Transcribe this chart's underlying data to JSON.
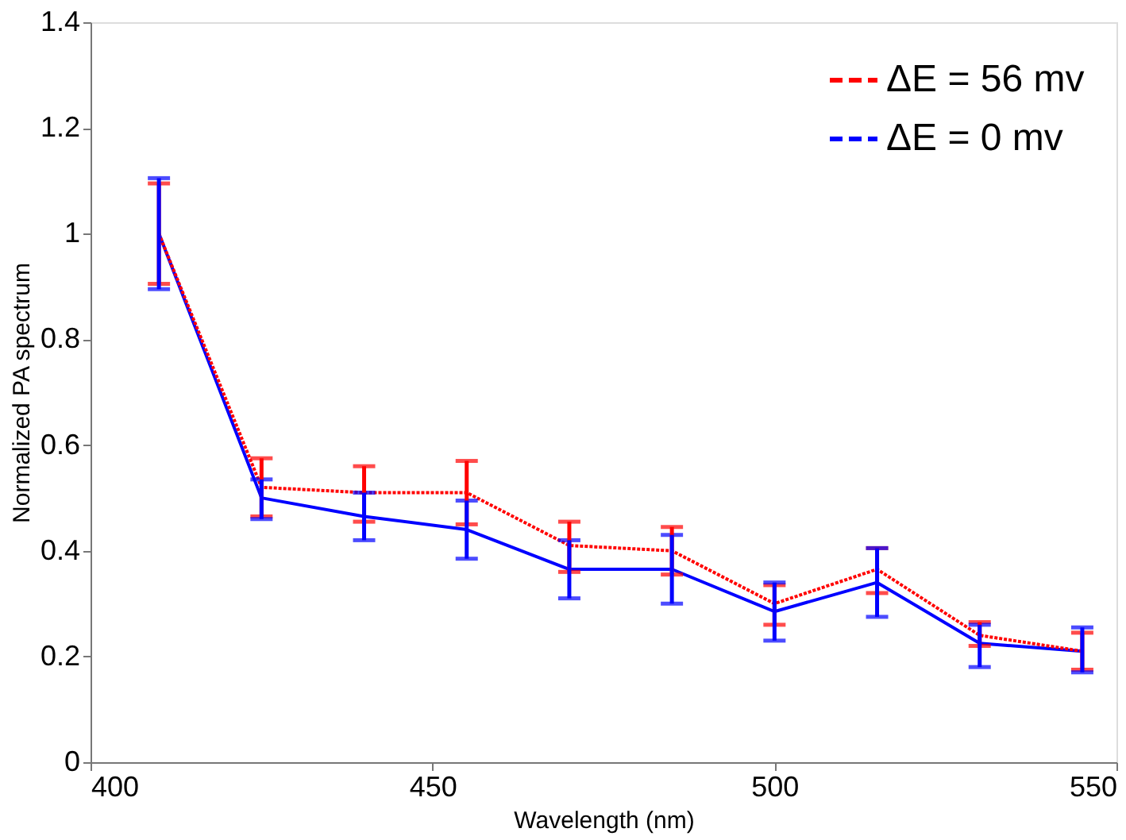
{
  "chart_data": {
    "type": "line",
    "xlabel": "Wavelength (nm)",
    "ylabel": "Normalized PA spectrum",
    "x": [
      410,
      425,
      440,
      455,
      470,
      485,
      500,
      515,
      530,
      545
    ],
    "series": [
      {
        "name": "ΔE = 56 mv",
        "color": "#ff0000",
        "line_style": "dotted",
        "values": [
          1.0,
          0.52,
          0.51,
          0.51,
          0.41,
          0.4,
          0.3,
          0.365,
          0.24,
          0.21
        ],
        "errors": [
          [
            0.905,
            1.095
          ],
          [
            0.465,
            0.575
          ],
          [
            0.455,
            0.56
          ],
          [
            0.45,
            0.57
          ],
          [
            0.36,
            0.455
          ],
          [
            0.355,
            0.445
          ],
          [
            0.26,
            0.335
          ],
          [
            0.32,
            0.405
          ],
          [
            0.22,
            0.265
          ],
          [
            0.175,
            0.245
          ]
        ]
      },
      {
        "name": "ΔE = 0 mv",
        "color": "#0000ff",
        "line_style": "solid",
        "values": [
          1.0,
          0.5,
          0.465,
          0.44,
          0.365,
          0.365,
          0.285,
          0.34,
          0.225,
          0.21
        ],
        "errors": [
          [
            0.895,
            1.105
          ],
          [
            0.46,
            0.535
          ],
          [
            0.42,
            0.51
          ],
          [
            0.385,
            0.495
          ],
          [
            0.31,
            0.42
          ],
          [
            0.3,
            0.43
          ],
          [
            0.23,
            0.34
          ],
          [
            0.275,
            0.405
          ],
          [
            0.18,
            0.26
          ],
          [
            0.17,
            0.255
          ]
        ]
      }
    ],
    "xlim": [
      400,
      550
    ],
    "xticks": [
      400,
      450,
      500,
      550
    ],
    "ylim": [
      0,
      1.4
    ],
    "yticks": [
      0,
      0.2,
      0.4,
      0.6,
      0.8,
      1,
      1.2,
      1.4
    ],
    "grid": false,
    "legend": "top right",
    "marker": "none"
  }
}
